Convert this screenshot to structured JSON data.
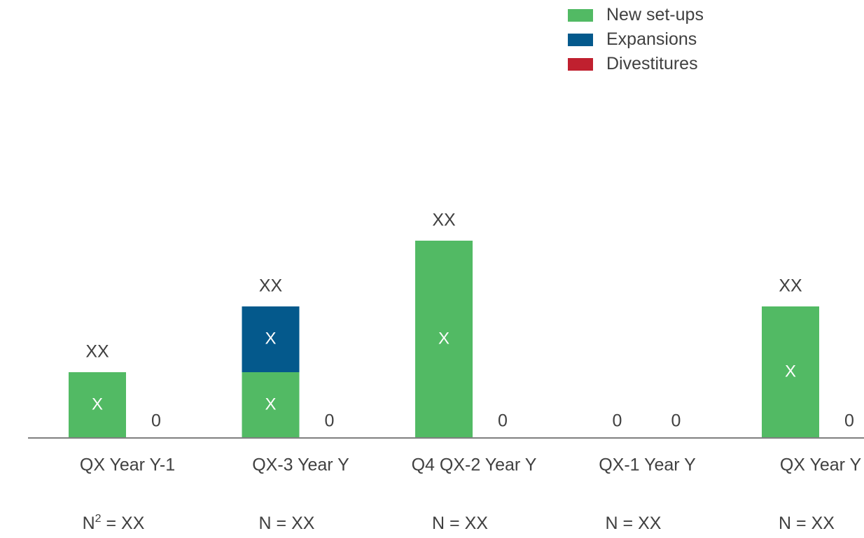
{
  "chart_data": {
    "type": "bar",
    "categories": [
      "QX Year Y-1",
      "QX-3 Year Y",
      "Q4 QX-2 Year Y",
      "QX-1 Year Y",
      "QX Year Y"
    ],
    "ylim": [
      0,
      3.5
    ],
    "legend_position": "top-right",
    "grid": false,
    "series": [
      {
        "name": "New set-ups",
        "color": "#52BA64",
        "values": [
          1,
          1,
          3,
          0,
          2
        ],
        "labels": [
          "X",
          "X",
          "X",
          "",
          "X"
        ]
      },
      {
        "name": "Expansions",
        "color": "#04598C",
        "values": [
          0,
          1,
          0,
          0,
          0
        ],
        "labels": [
          "",
          "X",
          "",
          "",
          ""
        ]
      },
      {
        "name": "Divestitures",
        "color": "#C0202F",
        "values": [
          0,
          0,
          0,
          0,
          0
        ],
        "labels": [
          "0",
          "0",
          "0",
          "0",
          "0"
        ]
      }
    ],
    "total_labels": [
      "XX",
      "XX",
      "XX",
      "0",
      "XX"
    ],
    "sample_sizes": [
      {
        "base": "N",
        "sup": "2",
        "text": " =  XX"
      },
      {
        "base": "N",
        "sup": "",
        "text": " =  XX"
      },
      {
        "base": "N",
        "sup": "",
        "text": " =  XX"
      },
      {
        "base": "N",
        "sup": "",
        "text": " =  XX"
      },
      {
        "base": "N",
        "sup": "",
        "text": " =  XX"
      }
    ]
  }
}
